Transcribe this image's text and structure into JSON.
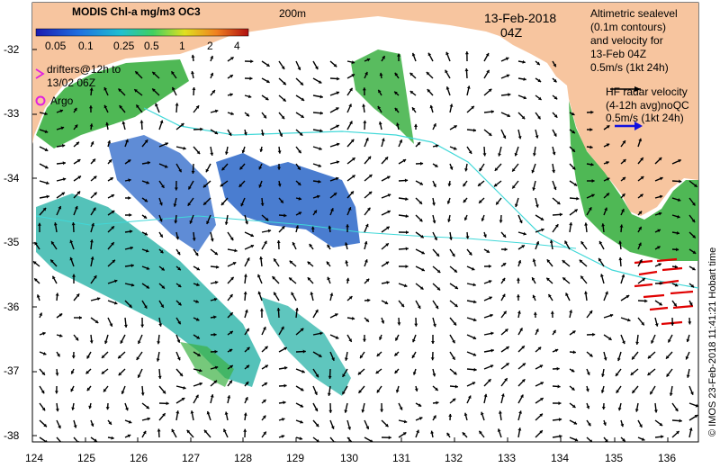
{
  "map": {
    "lon_ticks": [
      "124",
      "125",
      "126",
      "127",
      "128",
      "129",
      "130",
      "131",
      "132",
      "133",
      "134",
      "135",
      "136"
    ],
    "lat_ticks": [
      "-32",
      "-33",
      "-34",
      "-35",
      "-36",
      "-37",
      "-38"
    ],
    "depth_contour_label": "200m",
    "date": "13-Feb-2018",
    "time": "04Z"
  },
  "colorbar": {
    "title": "MODIS Chl-a mg/m3 OC3",
    "ticks": [
      "0.05",
      "0.1",
      "0.25",
      "0.5",
      "1",
      "2",
      "4"
    ]
  },
  "legend": {
    "drifters": [
      "drifters@12h to",
      "13/02 06Z"
    ],
    "argo": "Argo",
    "altimetry": [
      "Altimetric sealevel",
      "(0.1m contours)",
      "and velocity for",
      "13-Feb 04Z"
    ],
    "altimetry_scale": "0.5m/s (1kt 24h)",
    "hf_radar": [
      "HF radar velocity",
      "(4-12h avg)noQC"
    ],
    "hf_radar_scale": "0.5m/s (1kt 24h)"
  },
  "credit": "© IMOS 23-Feb-2018 11:41:21 Hobart time",
  "colors": {
    "land": "#f7c59f",
    "chl_low": "#2a66c8",
    "chl_mid": "#29b3a8",
    "chl_high": "#3cb043",
    "hf_radar": "#e00000",
    "contour": "#40d8d8"
  }
}
